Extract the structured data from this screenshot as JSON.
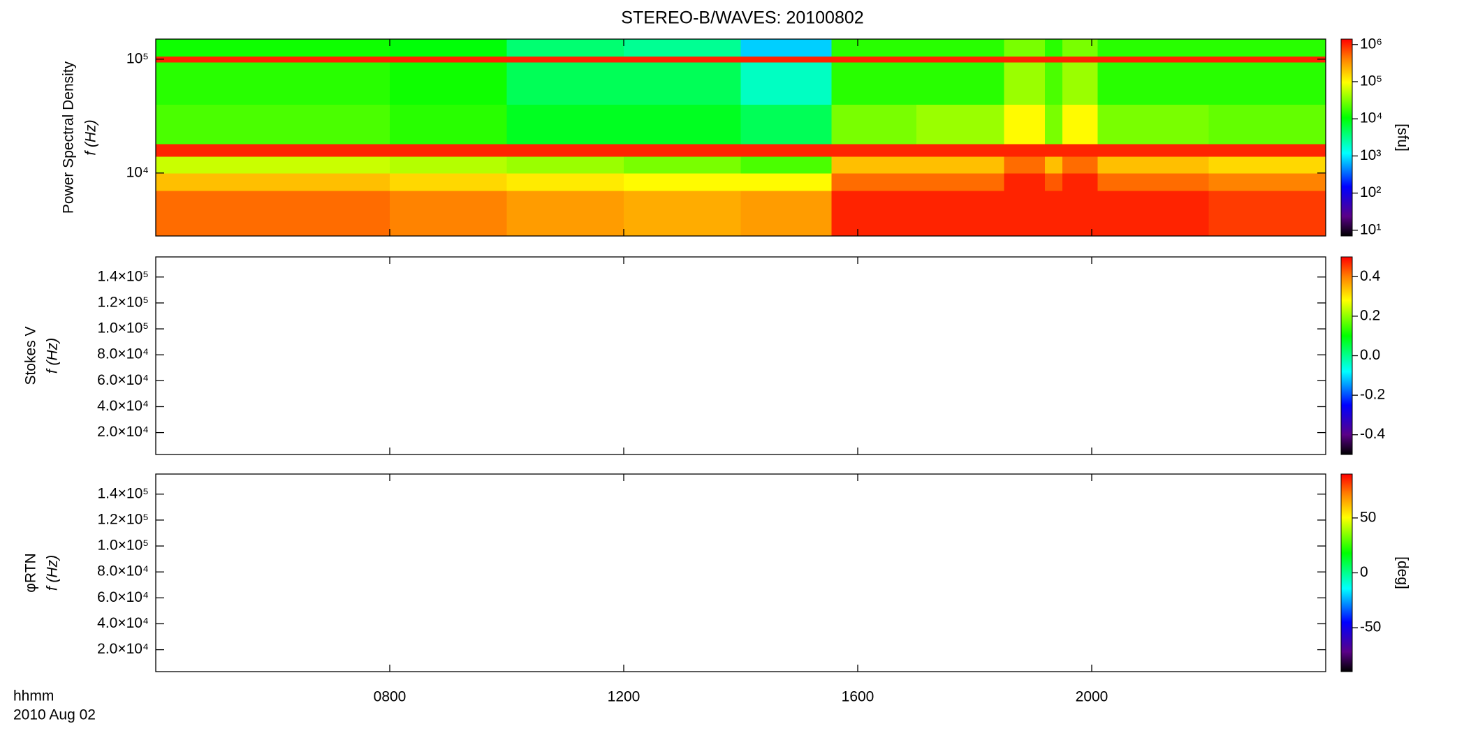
{
  "title": "STEREO-B/WAVES: 20100802",
  "x_axis": {
    "xlabel": "hhmm",
    "date": "2010 Aug 02",
    "xlim": [
      4,
      24
    ],
    "xticks": [
      {
        "value": 8,
        "label": "0800"
      },
      {
        "value": 12,
        "label": "1200"
      },
      {
        "value": 16,
        "label": "1600"
      },
      {
        "value": 20,
        "label": "2000"
      }
    ]
  },
  "chart_data": [
    {
      "type": "heatmap",
      "ylabel": "Power Spectral Density",
      "ylabel2": "f (Hz)",
      "log_y": true,
      "ylim": [
        2800,
        150000
      ],
      "yticks": [
        {
          "value": 10000,
          "label": "10⁴"
        },
        {
          "value": 100000,
          "label": "10⁵"
        }
      ],
      "x_edges": [
        4,
        8,
        10,
        12,
        14,
        15.55,
        17,
        18.5,
        19.2,
        19.5,
        20.1,
        22,
        24
      ],
      "y_edges": [
        2800,
        7000,
        10000,
        14000,
        18000,
        40000,
        94000,
        106000,
        150000
      ],
      "z": [
        [
          500000,
          400000,
          300000,
          250000,
          300000,
          1000000,
          1000000,
          1000000,
          1000000,
          1000000,
          1000000,
          800000
        ],
        [
          200000,
          150000,
          120000,
          100000,
          100000,
          500000,
          500000,
          1000000,
          600000,
          1000000,
          500000,
          400000
        ],
        [
          60000,
          50000,
          40000,
          30000,
          20000,
          200000,
          200000,
          500000,
          200000,
          500000,
          200000,
          150000
        ],
        [
          1000000,
          1000000,
          1000000,
          1000000,
          1000000,
          1000000,
          1000000,
          1000000,
          1000000,
          1000000,
          1000000,
          1000000
        ],
        [
          20000,
          15000,
          8000,
          8000,
          5000,
          30000,
          40000,
          100000,
          30000,
          100000,
          30000,
          25000
        ],
        [
          15000,
          12000,
          5000,
          5000,
          2000,
          15000,
          15000,
          40000,
          20000,
          40000,
          15000,
          15000
        ],
        [
          1000000,
          1000000,
          1000000,
          1000000,
          1000000,
          1000000,
          1000000,
          1000000,
          1000000,
          1000000,
          1000000,
          1000000
        ],
        [
          12000,
          10000,
          4000,
          3000,
          800,
          15000,
          15000,
          30000,
          15000,
          30000,
          15000,
          15000
        ]
      ],
      "colorbar": {
        "log": true,
        "zlim": [
          7,
          1400000
        ],
        "label": "[sfu]",
        "ticks": [
          {
            "value": 10,
            "label": "10¹"
          },
          {
            "value": 100,
            "label": "10²"
          },
          {
            "value": 1000,
            "label": "10³"
          },
          {
            "value": 10000,
            "label": "10⁴"
          },
          {
            "value": 100000,
            "label": "10⁵"
          },
          {
            "value": 1000000,
            "label": "10⁶"
          }
        ]
      }
    },
    {
      "type": "heatmap",
      "ylabel": "Stokes V",
      "ylabel2": "f (Hz)",
      "ylim": [
        3100,
        155500
      ],
      "yticks": [
        {
          "value": 20000,
          "label": "2.0×10⁴"
        },
        {
          "value": 40000,
          "label": "4.0×10⁴"
        },
        {
          "value": 60000,
          "label": "6.0×10⁴"
        },
        {
          "value": 80000,
          "label": "8.0×10⁴"
        },
        {
          "value": 100000,
          "label": "1.0×10⁵"
        },
        {
          "value": 120000,
          "label": "1.2×10⁵"
        },
        {
          "value": 140000,
          "label": "1.4×10⁵"
        }
      ],
      "colorbar": {
        "zlim": [
          -0.5,
          0.5
        ],
        "ticks": [
          -0.4,
          -0.2,
          {
            "value": 0,
            "label": "0.0"
          },
          0.2,
          0.4
        ]
      }
    },
    {
      "type": "heatmap",
      "ylabel": "φRTN",
      "ylabel2": "f (Hz)",
      "ylim": [
        3100,
        155500
      ],
      "yticks": [
        {
          "value": 20000,
          "label": "2.0×10⁴"
        },
        {
          "value": 40000,
          "label": "4.0×10⁴"
        },
        {
          "value": 60000,
          "label": "6.0×10⁴"
        },
        {
          "value": 80000,
          "label": "8.0×10⁴"
        },
        {
          "value": 100000,
          "label": "1.0×10⁵"
        },
        {
          "value": 120000,
          "label": "1.2×10⁵"
        },
        {
          "value": 140000,
          "label": "1.4×10⁵"
        }
      ],
      "colorbar": {
        "zlim": [
          -90,
          90
        ],
        "label": "[deg]",
        "ticks": [
          -50,
          0,
          50
        ]
      }
    }
  ]
}
